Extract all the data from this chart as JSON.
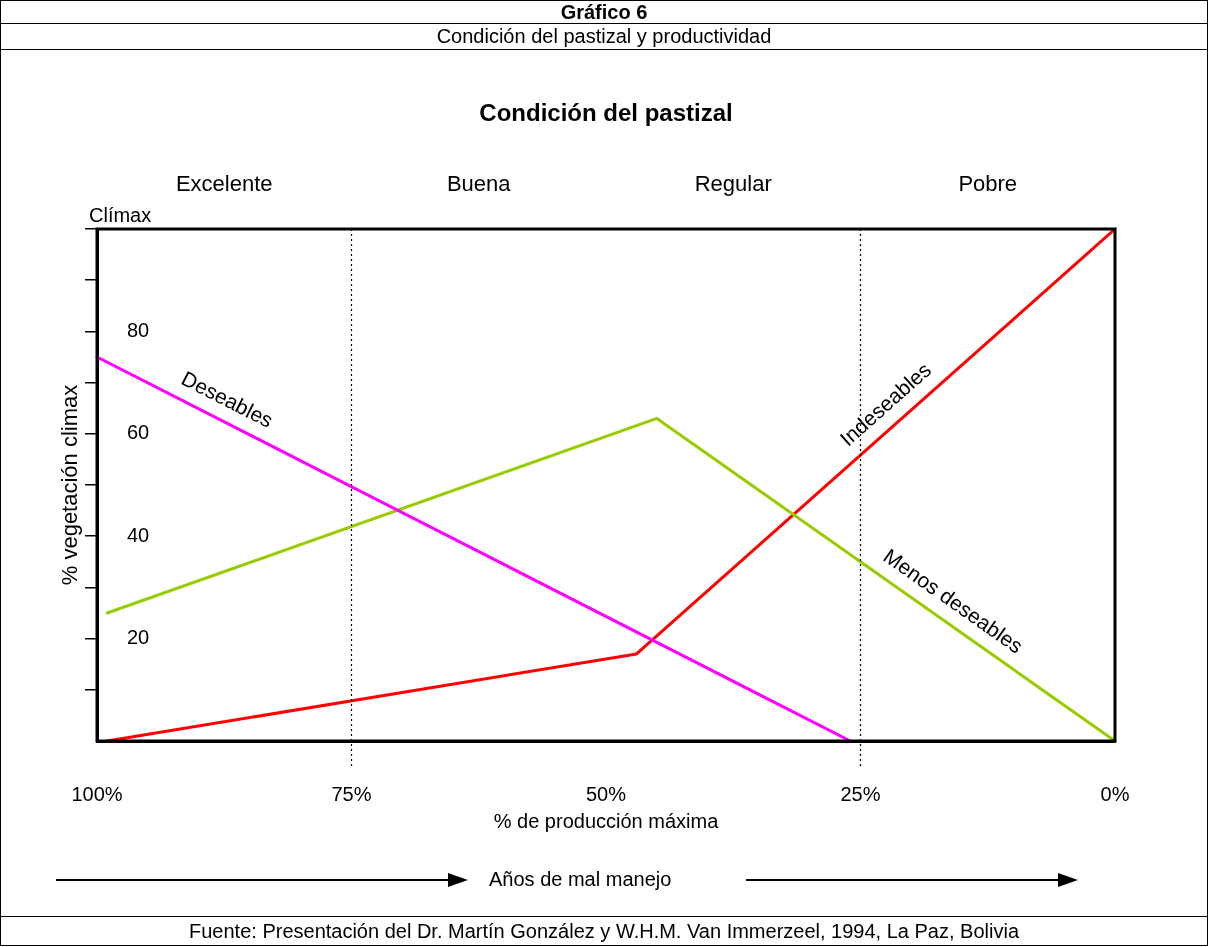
{
  "chart_data": {
    "type": "line",
    "title": "Gráfico 6",
    "subtitle": "Condición del pastizal y productividad",
    "xlabel": "% de producción máxima",
    "ylabel": "% vegetación climax",
    "xlim": [
      100,
      0
    ],
    "xticks": [
      {
        "value": 100,
        "label": "100%"
      },
      {
        "value": 75,
        "label": "75%"
      },
      {
        "value": 50,
        "label": "50%"
      },
      {
        "value": 25,
        "label": "25%"
      },
      {
        "value": 0,
        "label": "0%"
      }
    ],
    "ylim": [
      0,
      100
    ],
    "yticks": [
      {
        "value": 10,
        "label": null
      },
      20,
      {
        "value": 30,
        "label": null
      },
      40,
      {
        "value": 50,
        "label": null
      },
      60,
      {
        "value": 70,
        "label": null
      },
      80,
      {
        "value": 90,
        "label": null
      },
      {
        "value": 100,
        "label": "Clímax"
      }
    ],
    "series": [
      {
        "name": "Deseables",
        "color": "#ff00ff",
        "x": [
          100,
          26
        ],
        "values": [
          75,
          0
        ]
      },
      {
        "name": "Menos deseables",
        "color": "#99cc00",
        "x": [
          99,
          45,
          0
        ],
        "values": [
          25,
          63,
          0
        ]
      },
      {
        "name": "Indeseables",
        "color": "#ff0000",
        "x": [
          99,
          47,
          0
        ],
        "values": [
          0,
          17,
          100
        ]
      }
    ],
    "ref_lines": [
      {
        "axis": "x",
        "value": 75,
        "line_style": "dotted"
      },
      {
        "axis": "x",
        "value": 25,
        "line_style": "dotted"
      }
    ],
    "annotations": [
      "Condición del pastizal",
      "Excelente",
      "Buena",
      "Regular",
      "Pobre",
      "Años de mal manejo",
      "Fuente: Presentación del Dr. Martín González y W.H.M. Van Immerzeel, 1994, La Paz, Bolivia"
    ],
    "grid": false,
    "legend": false,
    "marker": "none",
    "line_style": "solid"
  }
}
